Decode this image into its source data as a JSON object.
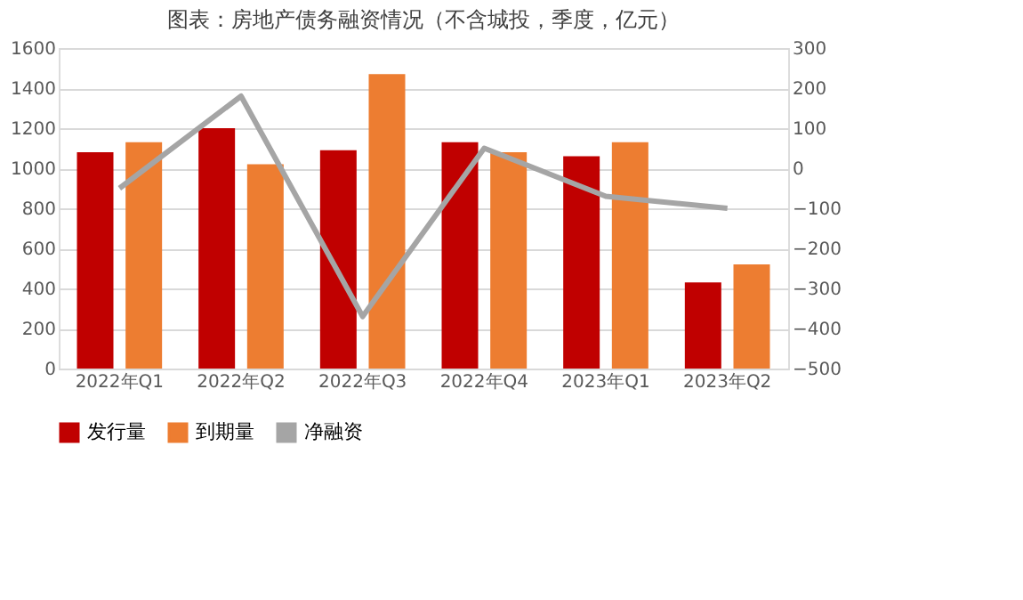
{
  "chart_data": {
    "type": "bar",
    "title": "图表：房地产债务融资情况（不含城投，季度，亿元）",
    "categories": [
      "2022年Q1",
      "2022年Q2",
      "2022年Q3",
      "2022年Q4",
      "2023年Q1",
      "2023年Q2"
    ],
    "series": [
      {
        "name": "发行量",
        "color": "#c00000",
        "values": [
          1080,
          1200,
          1090,
          1130,
          1060,
          430
        ]
      },
      {
        "name": "到期量",
        "color": "#ed7d31",
        "values": [
          1130,
          1020,
          1470,
          1080,
          1130,
          520
        ]
      },
      {
        "name": "净融资",
        "color": "#a5a5a5",
        "type": "line",
        "axis": "y2",
        "values": [
          -50,
          180,
          -370,
          50,
          -70,
          -100
        ]
      }
    ],
    "ylim": [
      0,
      1600
    ],
    "yticks": [
      0,
      200,
      400,
      600,
      800,
      1000,
      1200,
      1400,
      1600
    ],
    "y2lim": [
      -500,
      300
    ],
    "y2ticks": [
      -500,
      -400,
      -300,
      -200,
      -100,
      0,
      100,
      200,
      300
    ],
    "grid": "y",
    "legend": "bottom",
    "marker": "none"
  }
}
